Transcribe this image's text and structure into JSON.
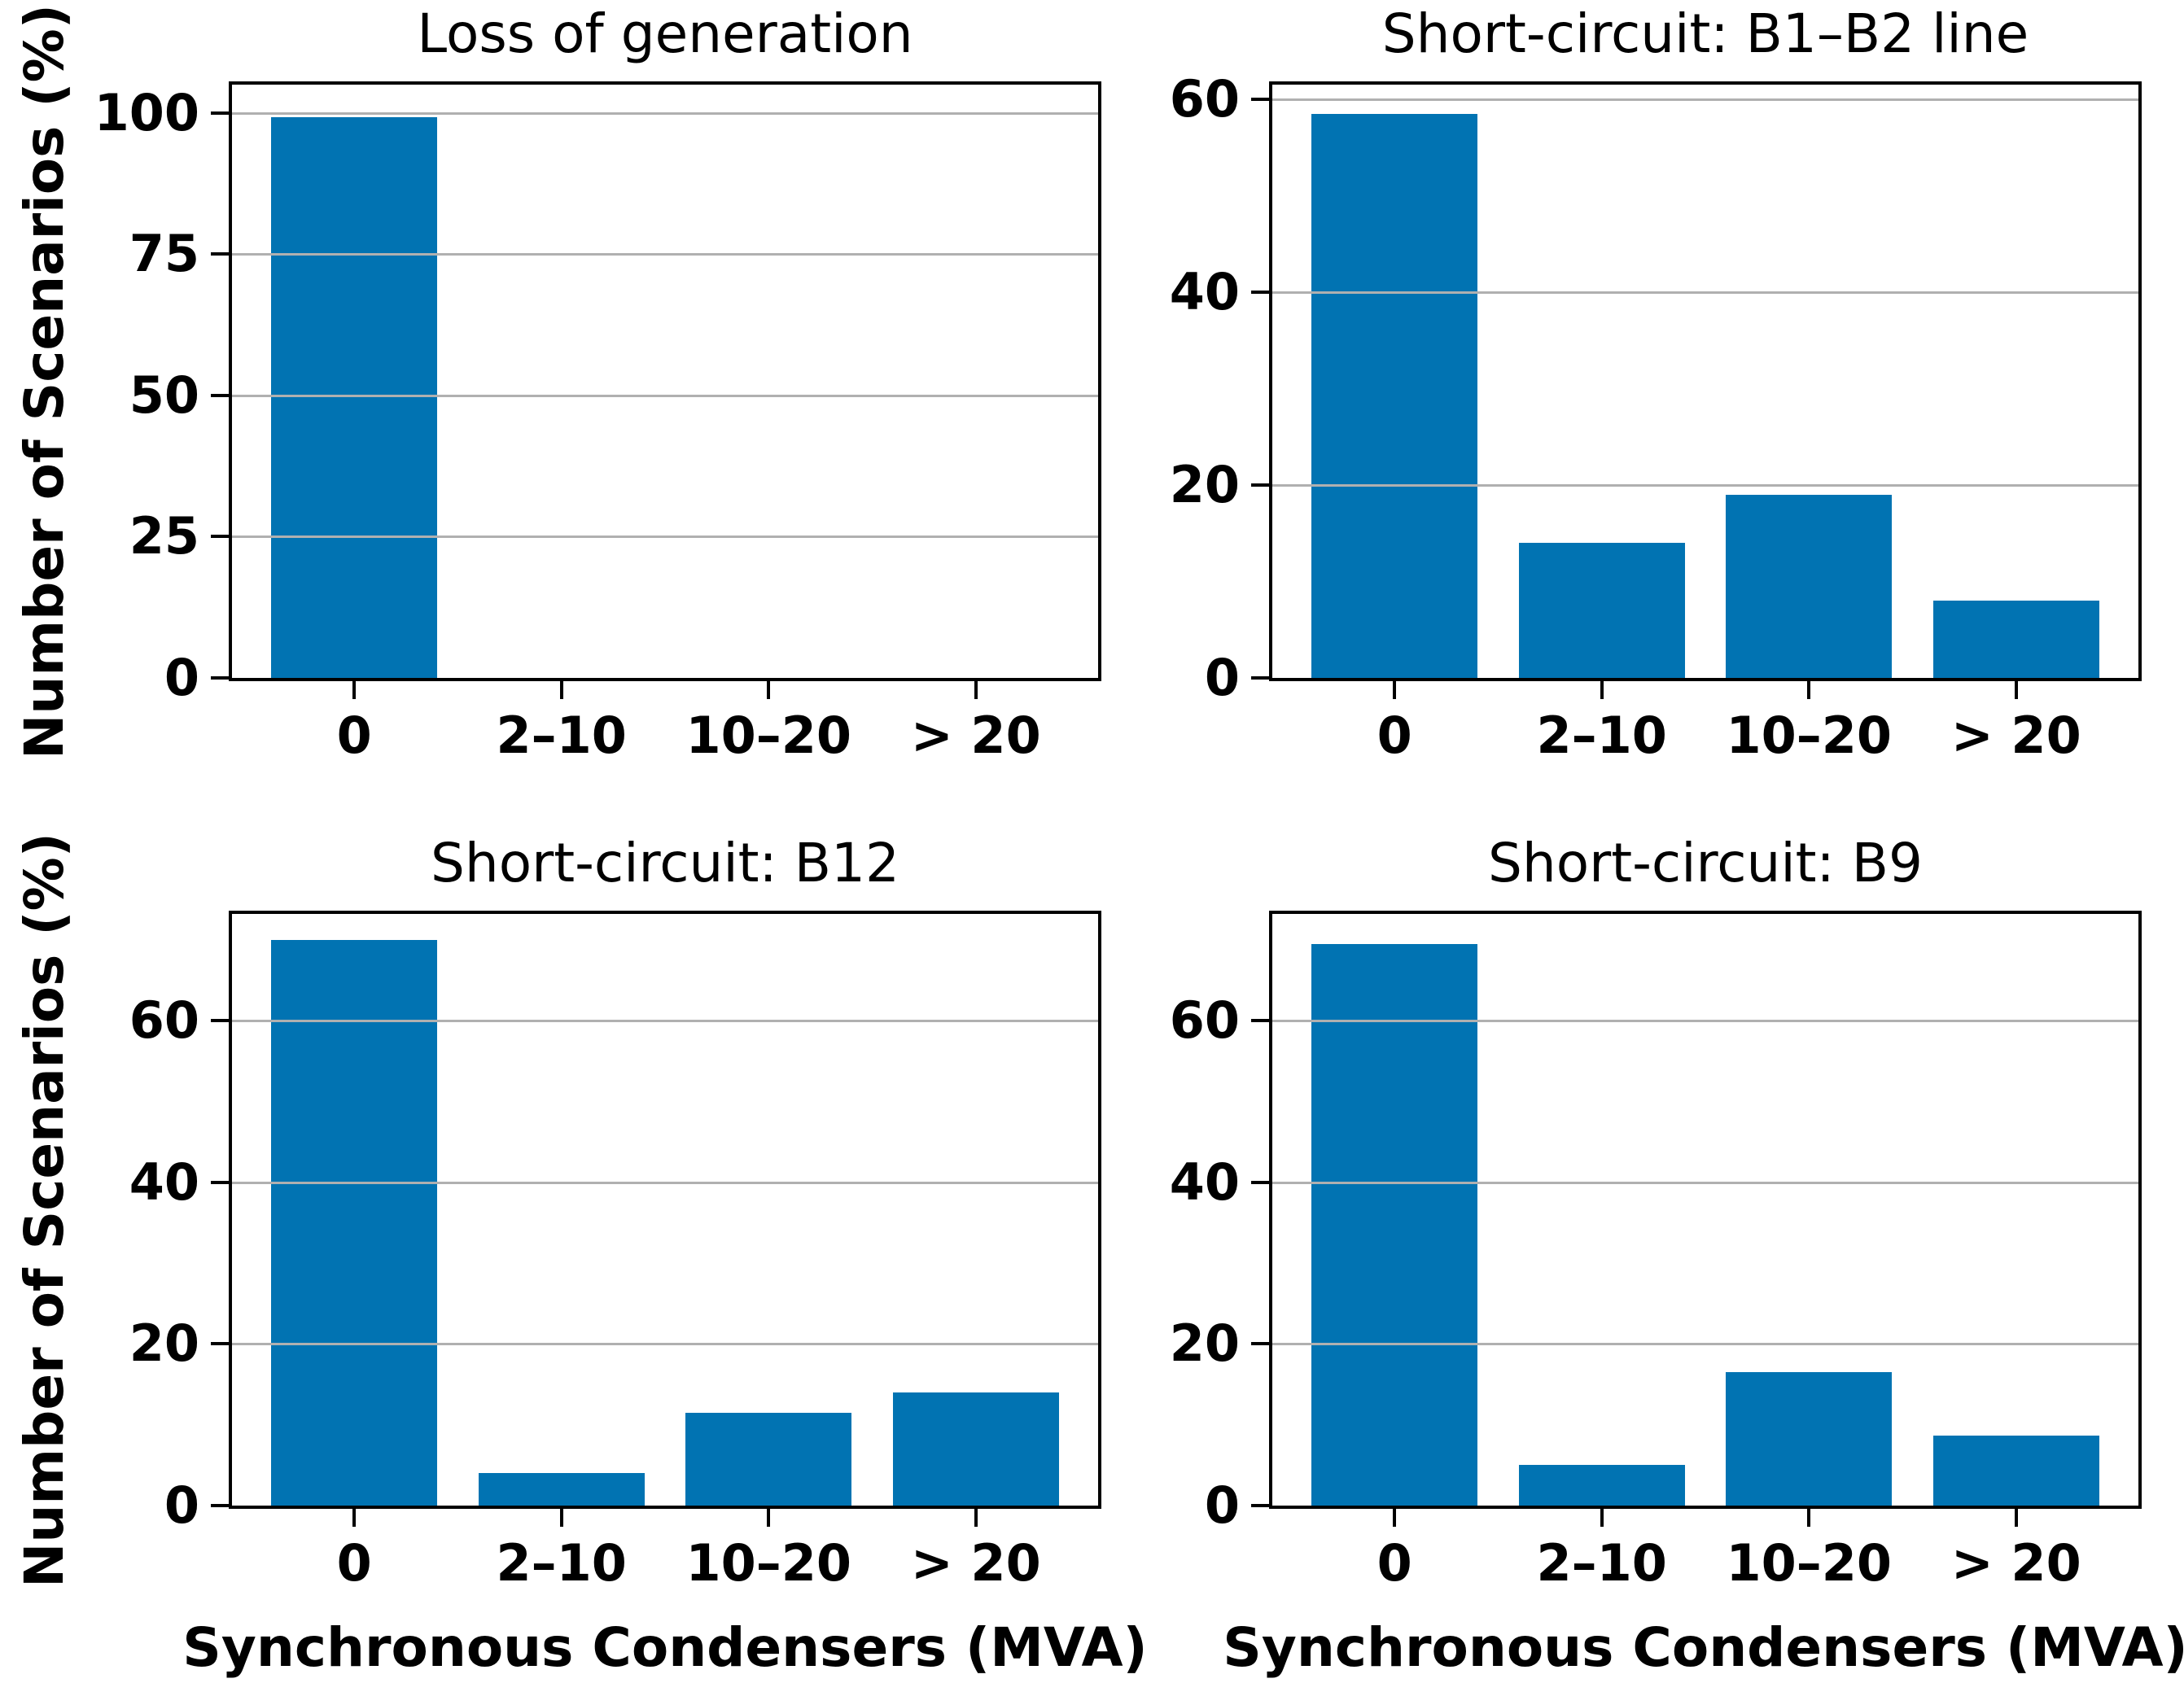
{
  "figure": {
    "ylabel": "Number of Scenarios (%)",
    "xlabel": "Synchronous Condensers (MVA)",
    "categories": [
      "0",
      "2–10",
      "10–20",
      "> 20"
    ],
    "bar_color": "#0173b2",
    "grid_color": "#b0b0b0",
    "spine_color": "#000000",
    "background_color": "#ffffff"
  },
  "chart_data": [
    {
      "type": "bar",
      "position": "top-left",
      "title": "Loss of generation",
      "categories": [
        "0",
        "2–10",
        "10–20",
        "> 20"
      ],
      "values": [
        99.3,
        0,
        0,
        0
      ],
      "yticks": [
        0,
        25,
        50,
        75,
        100
      ],
      "ylim": [
        0,
        105
      ],
      "ylabel": "Number of Scenarios (%)",
      "xlabel": "",
      "grid": true,
      "legend": "none"
    },
    {
      "type": "bar",
      "position": "top-right",
      "title": "Short-circuit: B1–B2 line",
      "categories": [
        "0",
        "2–10",
        "10–20",
        "> 20"
      ],
      "values": [
        58.5,
        14,
        19,
        8
      ],
      "yticks": [
        0,
        20,
        40,
        60
      ],
      "ylim": [
        0,
        61.5
      ],
      "ylabel": "",
      "xlabel": "",
      "grid": true,
      "legend": "none"
    },
    {
      "type": "bar",
      "position": "bottom-left",
      "title": "Short-circuit: B12",
      "categories": [
        "0",
        "2–10",
        "10–20",
        "> 20"
      ],
      "values": [
        70,
        4,
        11.5,
        14
      ],
      "yticks": [
        0,
        20,
        40,
        60
      ],
      "ylim": [
        0,
        73.2
      ],
      "ylabel": "Number of Scenarios (%)",
      "xlabel": "Synchronous Condensers (MVA)",
      "grid": true,
      "legend": "none"
    },
    {
      "type": "bar",
      "position": "bottom-right",
      "title": "Short-circuit: B9",
      "categories": [
        "0",
        "2–10",
        "10–20",
        "> 20"
      ],
      "values": [
        69.5,
        5,
        16.5,
        8.7
      ],
      "yticks": [
        0,
        20,
        40,
        60
      ],
      "ylim": [
        0,
        73.2
      ],
      "ylabel": "",
      "xlabel": "Synchronous Condensers (MVA)",
      "grid": true,
      "legend": "none"
    }
  ]
}
